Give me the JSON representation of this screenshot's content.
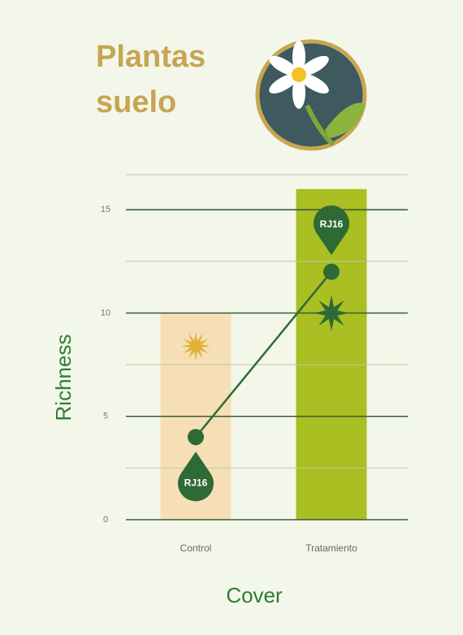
{
  "chart_data": {
    "type": "bar",
    "title_lines": [
      "Plantas",
      "suelo"
    ],
    "x_label": "Cover",
    "y_label": "Richness",
    "categories": [
      "Control",
      "Tratamiento"
    ],
    "bars": {
      "values": [
        10,
        16
      ],
      "colors": [
        "#f6dfb6",
        "#a9bf22"
      ]
    },
    "line": {
      "values": [
        4,
        12
      ],
      "color": "#2f6a36"
    },
    "markers": [
      {
        "shape": "sun",
        "color": "#e2b234",
        "values": [
          8.4,
          null
        ]
      },
      {
        "shape": "star",
        "color": "#2f6a36",
        "values": [
          null,
          10
        ]
      }
    ],
    "series": [
      {
        "name": "RJ16",
        "color": "#2f6a36",
        "values": [
          1.8,
          14.3
        ]
      }
    ],
    "ylim": [
      0,
      16.7
    ],
    "yticks": [
      0,
      5,
      10,
      15
    ],
    "minor_yticks": [
      2.5,
      7.5,
      12.5
    ],
    "grid": true
  }
}
